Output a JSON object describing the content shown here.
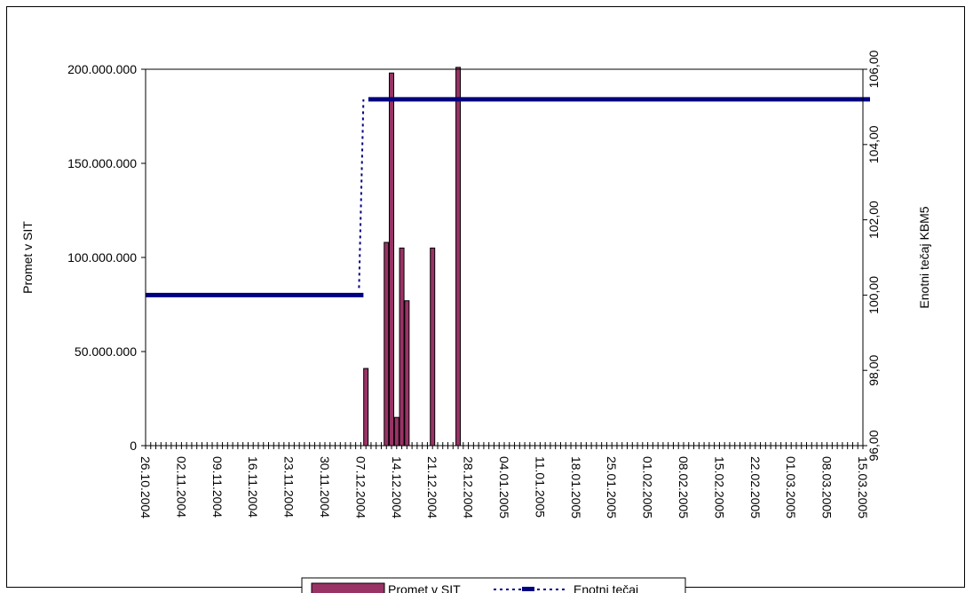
{
  "chart_data": {
    "type": "bar",
    "left_axis": {
      "label": "Promet v SIT",
      "range": [
        0,
        200000000
      ],
      "ticks": [
        "0",
        "50.000.000",
        "100.000.000",
        "150.000.000",
        "200.000.000"
      ]
    },
    "right_axis": {
      "label": "Enotni tečaj KBM5",
      "range": [
        96,
        106
      ],
      "ticks": [
        "96,00",
        "98,00",
        "100,00",
        "102,00",
        "104,00",
        "106,00"
      ]
    },
    "x_axis": {
      "label": "",
      "range": [
        "2004-10-26",
        "2005-03-15"
      ],
      "ticks": [
        "26.10.2004",
        "02.11.2004",
        "09.11.2004",
        "16.11.2004",
        "23.11.2004",
        "30.11.2004",
        "07.12.2004",
        "14.12.2004",
        "21.12.2004",
        "28.12.2004",
        "04.01.2005",
        "11.01.2005",
        "18.01.2005",
        "25.01.2005",
        "01.02.2005",
        "08.02.2005",
        "15.02.2005",
        "22.02.2005",
        "01.03.2005",
        "08.03.2005",
        "15.03.2005"
      ]
    },
    "series": [
      {
        "name": "Promet v SIT",
        "kind": "bar",
        "axis": "left",
        "color": "#993366",
        "points": [
          {
            "date": "2004-12-08",
            "value": 41000000
          },
          {
            "date": "2004-12-12",
            "value": 108000000
          },
          {
            "date": "2004-12-13",
            "value": 198000000
          },
          {
            "date": "2004-12-14",
            "value": 15000000
          },
          {
            "date": "2004-12-15",
            "value": 105000000
          },
          {
            "date": "2004-12-16",
            "value": 77000000
          },
          {
            "date": "2004-12-21",
            "value": 105000000
          },
          {
            "date": "2004-12-26",
            "value": 201000000
          }
        ]
      },
      {
        "name": "Enotni tečaj",
        "kind": "line",
        "axis": "right",
        "color": "#000080",
        "points": [
          {
            "date": "2004-10-26",
            "value": 100.0
          },
          {
            "date": "2004-12-07",
            "value": 100.0
          },
          {
            "date": "2004-12-09",
            "value": 105.2
          },
          {
            "date": "2005-03-15",
            "value": 105.2
          }
        ]
      }
    ],
    "legend": {
      "placement": "bottom",
      "entries": [
        "Promet v SIT",
        "Enotni tečaj"
      ]
    },
    "grid": false
  }
}
